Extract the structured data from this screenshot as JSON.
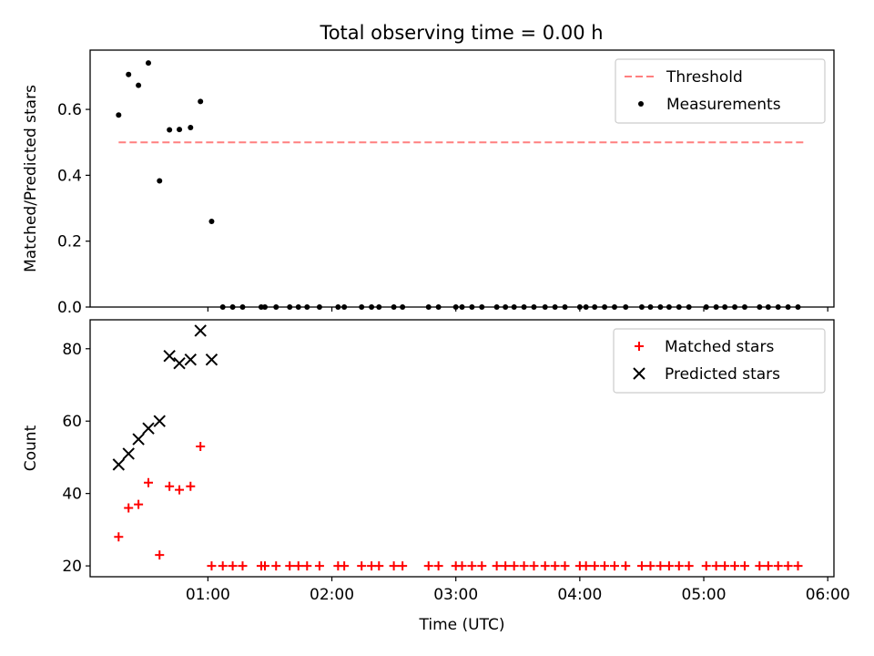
{
  "figure": {
    "title": "Total observing time = 0.00 h"
  },
  "chart_data": [
    {
      "type": "scatter",
      "title": "Total observing time = 0.00 h",
      "xlabel": "",
      "ylabel": "Matched/Predicted stars",
      "xlim": [
        0.05,
        6.05
      ],
      "ylim": [
        0.0,
        0.78
      ],
      "yticks": [
        0.0,
        0.2,
        0.4,
        0.6
      ],
      "ytick_labels": [
        "0.0",
        "0.2",
        "0.4",
        "0.6"
      ],
      "xticks": [
        1,
        2,
        3,
        4,
        5,
        6
      ],
      "xtick_labels": [],
      "grid": false,
      "legend_position": "upper-right",
      "threshold": {
        "name": "Threshold",
        "value": 0.5,
        "x_range": [
          0.28,
          5.82
        ],
        "color": "#ff7f7f",
        "style": "dashed"
      },
      "series": [
        {
          "name": "Measurements",
          "marker": "dot",
          "color": "#000000",
          "points": [
            [
              0.28,
              0.583
            ],
            [
              0.36,
              0.706
            ],
            [
              0.44,
              0.673
            ],
            [
              0.52,
              0.741
            ],
            [
              0.61,
              0.383
            ],
            [
              0.69,
              0.538
            ],
            [
              0.77,
              0.539
            ],
            [
              0.86,
              0.545
            ],
            [
              0.94,
              0.624
            ],
            [
              1.03,
              0.26
            ],
            [
              1.12,
              0.0
            ],
            [
              1.2,
              0.0
            ],
            [
              1.28,
              0.0
            ],
            [
              1.43,
              0.0
            ],
            [
              1.46,
              0.0
            ],
            [
              1.55,
              0.0
            ],
            [
              1.66,
              0.0
            ],
            [
              1.73,
              0.0
            ],
            [
              1.8,
              0.0
            ],
            [
              1.9,
              0.0
            ],
            [
              2.05,
              0.0
            ],
            [
              2.1,
              0.0
            ],
            [
              2.24,
              0.0
            ],
            [
              2.32,
              0.0
            ],
            [
              2.38,
              0.0
            ],
            [
              2.5,
              0.0
            ],
            [
              2.57,
              0.0
            ],
            [
              2.78,
              0.0
            ],
            [
              2.86,
              0.0
            ],
            [
              3.0,
              0.0
            ],
            [
              3.05,
              0.0
            ],
            [
              3.13,
              0.0
            ],
            [
              3.21,
              0.0
            ],
            [
              3.33,
              0.0
            ],
            [
              3.4,
              0.0
            ],
            [
              3.47,
              0.0
            ],
            [
              3.55,
              0.0
            ],
            [
              3.63,
              0.0
            ],
            [
              3.72,
              0.0
            ],
            [
              3.8,
              0.0
            ],
            [
              3.88,
              0.0
            ],
            [
              4.0,
              0.0
            ],
            [
              4.05,
              0.0
            ],
            [
              4.12,
              0.0
            ],
            [
              4.2,
              0.0
            ],
            [
              4.28,
              0.0
            ],
            [
              4.37,
              0.0
            ],
            [
              4.5,
              0.0
            ],
            [
              4.57,
              0.0
            ],
            [
              4.65,
              0.0
            ],
            [
              4.72,
              0.0
            ],
            [
              4.8,
              0.0
            ],
            [
              4.88,
              0.0
            ],
            [
              5.02,
              0.0
            ],
            [
              5.1,
              0.0
            ],
            [
              5.17,
              0.0
            ],
            [
              5.25,
              0.0
            ],
            [
              5.33,
              0.0
            ],
            [
              5.45,
              0.0
            ],
            [
              5.52,
              0.0
            ],
            [
              5.6,
              0.0
            ],
            [
              5.68,
              0.0
            ],
            [
              5.76,
              0.0
            ]
          ]
        }
      ]
    },
    {
      "type": "scatter",
      "title": "",
      "xlabel": "Time (UTC)",
      "ylabel": "Count",
      "xlim": [
        0.05,
        6.05
      ],
      "ylim": [
        17,
        88
      ],
      "yticks": [
        20,
        40,
        60,
        80
      ],
      "ytick_labels": [
        "20",
        "40",
        "60",
        "80"
      ],
      "xticks": [
        1,
        2,
        3,
        4,
        5,
        6
      ],
      "xtick_labels": [
        "01:00",
        "02:00",
        "03:00",
        "04:00",
        "05:00",
        "06:00"
      ],
      "grid": false,
      "legend_position": "upper-right",
      "series": [
        {
          "name": "Matched stars",
          "marker": "plus",
          "color": "#ff0000",
          "points": [
            [
              0.28,
              28
            ],
            [
              0.36,
              36
            ],
            [
              0.44,
              37
            ],
            [
              0.52,
              43
            ],
            [
              0.61,
              23
            ],
            [
              0.69,
              42
            ],
            [
              0.77,
              41
            ],
            [
              0.86,
              42
            ],
            [
              0.94,
              53
            ],
            [
              1.03,
              20
            ],
            [
              1.12,
              20
            ],
            [
              1.2,
              20
            ],
            [
              1.28,
              20
            ],
            [
              1.43,
              20
            ],
            [
              1.46,
              20
            ],
            [
              1.55,
              20
            ],
            [
              1.66,
              20
            ],
            [
              1.73,
              20
            ],
            [
              1.8,
              20
            ],
            [
              1.9,
              20
            ],
            [
              2.05,
              20
            ],
            [
              2.1,
              20
            ],
            [
              2.24,
              20
            ],
            [
              2.32,
              20
            ],
            [
              2.38,
              20
            ],
            [
              2.5,
              20
            ],
            [
              2.57,
              20
            ],
            [
              2.78,
              20
            ],
            [
              2.86,
              20
            ],
            [
              3.0,
              20
            ],
            [
              3.05,
              20
            ],
            [
              3.13,
              20
            ],
            [
              3.21,
              20
            ],
            [
              3.33,
              20
            ],
            [
              3.4,
              20
            ],
            [
              3.47,
              20
            ],
            [
              3.55,
              20
            ],
            [
              3.63,
              20
            ],
            [
              3.72,
              20
            ],
            [
              3.8,
              20
            ],
            [
              3.88,
              20
            ],
            [
              4.0,
              20
            ],
            [
              4.05,
              20
            ],
            [
              4.12,
              20
            ],
            [
              4.2,
              20
            ],
            [
              4.28,
              20
            ],
            [
              4.37,
              20
            ],
            [
              4.5,
              20
            ],
            [
              4.57,
              20
            ],
            [
              4.65,
              20
            ],
            [
              4.72,
              20
            ],
            [
              4.8,
              20
            ],
            [
              4.88,
              20
            ],
            [
              5.02,
              20
            ],
            [
              5.1,
              20
            ],
            [
              5.17,
              20
            ],
            [
              5.25,
              20
            ],
            [
              5.33,
              20
            ],
            [
              5.45,
              20
            ],
            [
              5.52,
              20
            ],
            [
              5.6,
              20
            ],
            [
              5.68,
              20
            ],
            [
              5.76,
              20
            ]
          ]
        },
        {
          "name": "Predicted stars",
          "marker": "x",
          "color": "#000000",
          "points": [
            [
              0.28,
              48
            ],
            [
              0.36,
              51
            ],
            [
              0.44,
              55
            ],
            [
              0.52,
              58
            ],
            [
              0.61,
              60
            ],
            [
              0.69,
              78
            ],
            [
              0.77,
              76
            ],
            [
              0.86,
              77
            ],
            [
              0.94,
              85
            ],
            [
              1.03,
              77
            ]
          ]
        }
      ]
    }
  ]
}
